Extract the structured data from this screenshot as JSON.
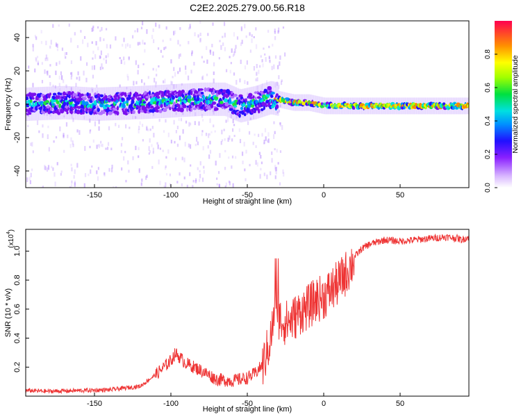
{
  "title": "C2E2.2025.279.00.56.R18",
  "chart_data": [
    {
      "type": "heatmap",
      "title": "C2E2.2025.279.00.56.R18",
      "xlabel": "Height of straight line (km)",
      "ylabel": "Frequency (Hz)",
      "xlim": [
        -195,
        95
      ],
      "ylim": [
        -50,
        50
      ],
      "xticks": [
        -150,
        -100,
        -50,
        0,
        50
      ],
      "xtick_labels": [
        "-150",
        "-100",
        "-50",
        "0",
        "50"
      ],
      "yticks": [
        -40,
        -20,
        0,
        20,
        40
      ],
      "ytick_labels": [
        "-40",
        "-20",
        "0",
        "20",
        "40"
      ],
      "ridge": {
        "x": [
          -195,
          -170,
          -150,
          -120,
          -100,
          -80,
          -65,
          -55,
          -45,
          -35,
          -30,
          -20,
          -10,
          0,
          20,
          50,
          95
        ],
        "frequency": [
          0,
          1,
          0,
          1,
          2,
          3,
          3,
          -1,
          1,
          4,
          3,
          1,
          1,
          -1,
          -1,
          -1,
          -1
        ]
      },
      "colorbar": {
        "label": "Normalized spectral amplitude",
        "range": [
          0,
          1
        ],
        "ticks": [
          0,
          0.2,
          0.4,
          0.6,
          0.8
        ],
        "tick_labels": [
          "0.0",
          "0.2",
          "0.4",
          "0.6",
          "0.8"
        ]
      }
    },
    {
      "type": "line",
      "xlabel": "Height of straight line (km)",
      "ylabel": "SNR (10 * v/v)",
      "yscale_label": "(x10",
      "yscale_exp": "4",
      "xlim": [
        -195,
        95
      ],
      "ylim": [
        0,
        11500
      ],
      "xticks": [
        -150,
        -100,
        -50,
        0,
        50
      ],
      "xtick_labels": [
        "-150",
        "-100",
        "-50",
        "0",
        "50"
      ],
      "yticks": [
        2000,
        4000,
        6000,
        8000,
        10000
      ],
      "ytick_labels": [
        "0.2",
        "0.4",
        "0.6",
        "0.8",
        "1.0"
      ],
      "line_color": "#ee3333",
      "series": [
        {
          "name": "SNR",
          "x": [
            -195,
            -180,
            -160,
            -140,
            -120,
            -110,
            -100,
            -97,
            -90,
            -80,
            -70,
            -60,
            -50,
            -45,
            -40,
            -35,
            -31,
            -29,
            -25,
            -20,
            -15,
            -10,
            -5,
            0,
            5,
            10,
            15,
            20,
            25,
            30,
            40,
            50,
            60,
            70,
            80,
            88,
            90,
            95
          ],
          "y": [
            400,
            350,
            400,
            450,
            700,
            1500,
            2500,
            3000,
            2300,
            1800,
            1200,
            1100,
            1300,
            1600,
            2200,
            4000,
            6500,
            5500,
            5200,
            5500,
            6000,
            6300,
            6800,
            7000,
            7500,
            8000,
            8700,
            9600,
            10200,
            10500,
            10800,
            10700,
            10800,
            10900,
            11000,
            10900,
            10800,
            11000
          ]
        }
      ]
    }
  ]
}
